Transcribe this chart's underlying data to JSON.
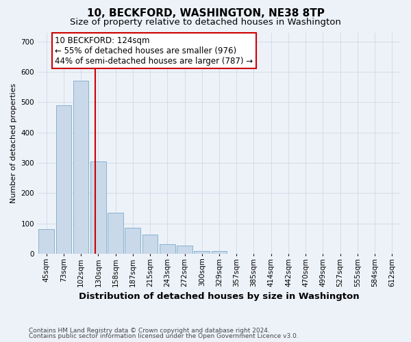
{
  "title": "10, BECKFORD, WASHINGTON, NE38 8TP",
  "subtitle": "Size of property relative to detached houses in Washington",
  "xlabel": "Distribution of detached houses by size in Washington",
  "ylabel": "Number of detached properties",
  "footer1": "Contains HM Land Registry data © Crown copyright and database right 2024.",
  "footer2": "Contains public sector information licensed under the Open Government Licence v3.0.",
  "annotation_line1": "10 BECKFORD: 124sqm",
  "annotation_line2": "← 55% of detached houses are smaller (976)",
  "annotation_line3": "44% of semi-detached houses are larger (787) →",
  "bar_values": [
    82,
    490,
    570,
    304,
    136,
    85,
    63,
    31,
    27,
    10,
    10,
    0,
    0,
    0,
    0,
    0,
    0,
    0,
    0,
    0,
    0
  ],
  "categories": [
    "45sqm",
    "73sqm",
    "102sqm",
    "130sqm",
    "158sqm",
    "187sqm",
    "215sqm",
    "243sqm",
    "272sqm",
    "300sqm",
    "329sqm",
    "357sqm",
    "385sqm",
    "414sqm",
    "442sqm",
    "470sqm",
    "499sqm",
    "527sqm",
    "555sqm",
    "584sqm",
    "612sqm"
  ],
  "bar_color": "#c9d9ea",
  "bar_edge_color": "#7aaac8",
  "vline_x_index": 2.83,
  "vline_color": "#cc0000",
  "annotation_box_color": "#cc0000",
  "ylim": [
    0,
    730
  ],
  "yticks": [
    0,
    100,
    200,
    300,
    400,
    500,
    600,
    700
  ],
  "grid_color": "#d0d8e4",
  "bg_color": "#edf2f9",
  "title_fontsize": 11,
  "subtitle_fontsize": 9.5,
  "annotation_fontsize": 8.5,
  "ylabel_fontsize": 8,
  "xlabel_fontsize": 9.5,
  "tick_fontsize": 7.5,
  "footer_fontsize": 6.5
}
